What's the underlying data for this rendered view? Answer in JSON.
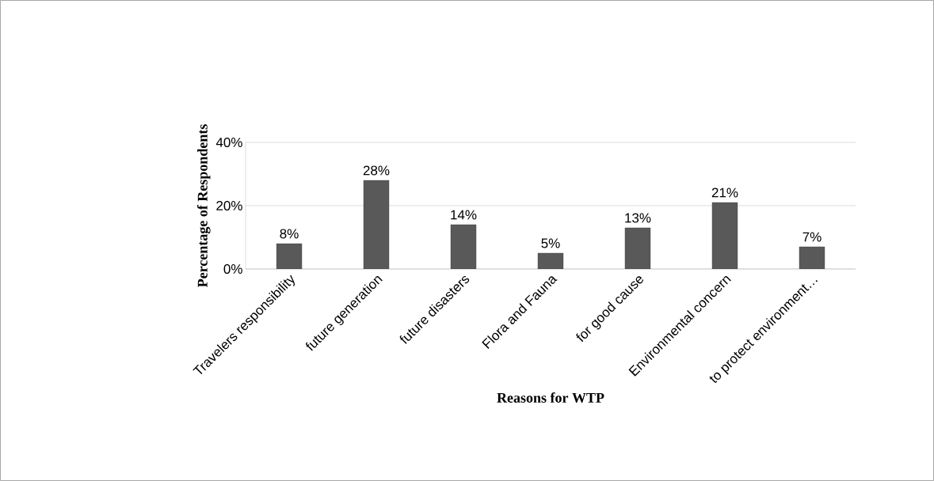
{
  "chart_data": {
    "type": "bar",
    "xlabel": "Reasons for WTP",
    "ylabel": "Percentage of Respondents",
    "categories": [
      "Travelers responsibility",
      "future generation",
      "future disasters",
      "Flora and Fauna",
      "for good cause",
      "Environmental concern",
      "to protect environment…"
    ],
    "values": [
      8,
      28,
      14,
      5,
      13,
      21,
      7
    ],
    "value_labels": [
      "8%",
      "28%",
      "14%",
      "5%",
      "13%",
      "21%",
      "7%"
    ],
    "color": "#595959",
    "ylim": [
      0,
      40
    ],
    "yticks": [
      {
        "value": 0,
        "label": "0%"
      },
      {
        "value": 20,
        "label": "20%"
      },
      {
        "value": 40,
        "label": "40%"
      }
    ],
    "grid": "y"
  }
}
